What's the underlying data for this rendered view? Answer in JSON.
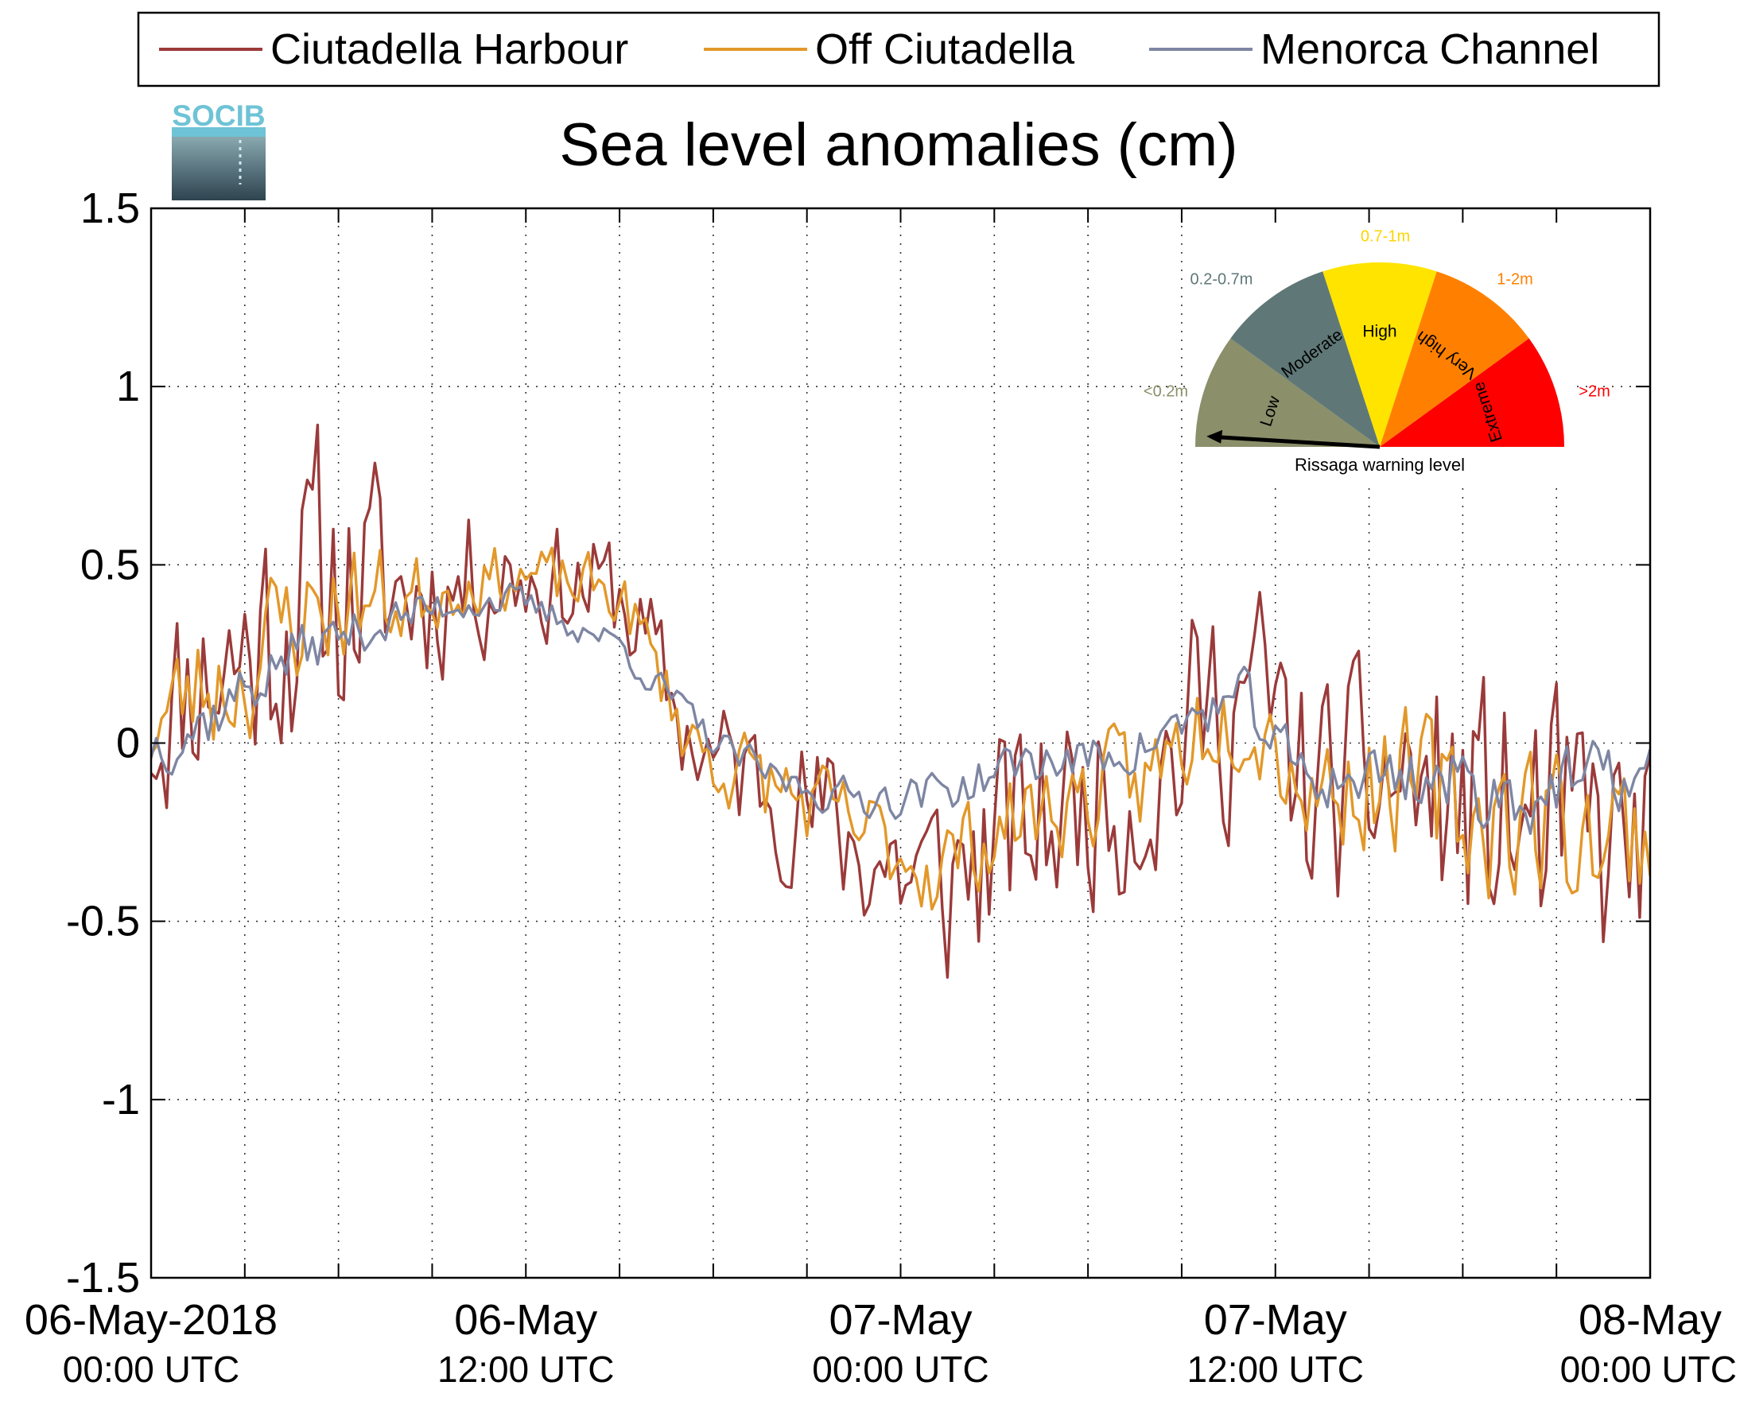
{
  "chart_data": {
    "type": "line",
    "title": "Sea level anomalies (cm)",
    "xlabel": "",
    "ylabel": "",
    "ylim": [
      -1.5,
      1.5
    ],
    "yticks": [
      1.5,
      1,
      0.5,
      0,
      -0.5,
      -1,
      -1.5
    ],
    "ytick_labels": [
      "1.5",
      "1",
      "0.5",
      "0",
      "-0.5",
      "-1",
      "-1.5"
    ],
    "xlim_hours": [
      0,
      48
    ],
    "x_grid_interval_hours": 3,
    "x_ticks": [
      {
        "hours": 0,
        "line1": "06-May-2018",
        "line2": "00:00 UTC"
      },
      {
        "hours": 12,
        "line1": "06-May",
        "line2": "12:00 UTC"
      },
      {
        "hours": 24,
        "line1": "07-May",
        "line2": "00:00 UTC"
      },
      {
        "hours": 36,
        "line1": "07-May",
        "line2": "12:00 UTC"
      },
      {
        "hours": 48,
        "line1": "08-May",
        "line2": "00:00 UTC"
      }
    ],
    "grid": true,
    "legend_position": "top",
    "sample_interval_minutes": 10,
    "series": [
      {
        "name": "Ciutadella Harbour",
        "color": "#9b3a3a",
        "trend_knots": [
          [
            0,
            0.05
          ],
          [
            1.5,
            0.2
          ],
          [
            3,
            0.25
          ],
          [
            4.5,
            0.4
          ],
          [
            6,
            0.45
          ],
          [
            8,
            0.42
          ],
          [
            10,
            0.45
          ],
          [
            11.5,
            0.48
          ],
          [
            13,
            0.45
          ],
          [
            15,
            0.42
          ],
          [
            16,
            0.25
          ],
          [
            17,
            0.05
          ],
          [
            18,
            -0.05
          ],
          [
            20,
            -0.12
          ],
          [
            22,
            -0.25
          ],
          [
            24,
            -0.35
          ],
          [
            25,
            -0.42
          ],
          [
            26,
            -0.35
          ],
          [
            28,
            -0.25
          ],
          [
            30,
            -0.15
          ],
          [
            32,
            -0.1
          ],
          [
            33,
            0.0
          ],
          [
            34,
            0.1
          ],
          [
            35,
            0.15
          ],
          [
            36,
            0.05
          ],
          [
            37,
            -0.15
          ],
          [
            38,
            -0.15
          ],
          [
            40,
            -0.1
          ],
          [
            42,
            -0.2
          ],
          [
            44,
            -0.25
          ],
          [
            46,
            -0.3
          ],
          [
            48,
            -0.3
          ]
        ],
        "noise_knots": [
          [
            0,
            0.25
          ],
          [
            2,
            0.3
          ],
          [
            3,
            0.35
          ],
          [
            6,
            0.38
          ],
          [
            8,
            0.25
          ],
          [
            12,
            0.15
          ],
          [
            15,
            0.15
          ],
          [
            17,
            0.15
          ],
          [
            20,
            0.18
          ],
          [
            24,
            0.25
          ],
          [
            26,
            0.3
          ],
          [
            30,
            0.25
          ],
          [
            34,
            0.3
          ],
          [
            36,
            0.3
          ],
          [
            40,
            0.28
          ],
          [
            42,
            0.35
          ],
          [
            46,
            0.35
          ],
          [
            48,
            0.3
          ]
        ],
        "seed": 11
      },
      {
        "name": "Off Ciutadella",
        "color": "#e2982a",
        "trend_knots": [
          [
            0,
            0.05
          ],
          [
            1.5,
            0.15
          ],
          [
            3,
            0.2
          ],
          [
            4.5,
            0.35
          ],
          [
            6,
            0.4
          ],
          [
            8,
            0.4
          ],
          [
            10,
            0.45
          ],
          [
            11.5,
            0.47
          ],
          [
            13,
            0.45
          ],
          [
            15,
            0.42
          ],
          [
            16,
            0.25
          ],
          [
            17,
            0.05
          ],
          [
            18,
            -0.05
          ],
          [
            20,
            -0.12
          ],
          [
            22,
            -0.22
          ],
          [
            24,
            -0.3
          ],
          [
            25,
            -0.35
          ],
          [
            26,
            -0.3
          ],
          [
            28,
            -0.2
          ],
          [
            30,
            -0.15
          ],
          [
            32,
            -0.1
          ],
          [
            33,
            0.0
          ],
          [
            34,
            0.1
          ],
          [
            35,
            0.12
          ],
          [
            36,
            0.02
          ],
          [
            37,
            -0.12
          ],
          [
            38,
            -0.12
          ],
          [
            40,
            -0.1
          ],
          [
            42,
            -0.2
          ],
          [
            44,
            -0.2
          ],
          [
            46,
            -0.25
          ],
          [
            48,
            -0.25
          ]
        ],
        "noise_knots": [
          [
            0,
            0.15
          ],
          [
            3,
            0.18
          ],
          [
            6,
            0.16
          ],
          [
            10,
            0.08
          ],
          [
            15,
            0.08
          ],
          [
            18,
            0.1
          ],
          [
            24,
            0.12
          ],
          [
            28,
            0.12
          ],
          [
            34,
            0.15
          ],
          [
            38,
            0.15
          ],
          [
            42,
            0.2
          ],
          [
            46,
            0.2
          ],
          [
            48,
            0.18
          ]
        ],
        "seed": 23
      },
      {
        "name": "Menorca Channel",
        "color": "#7e86a3",
        "trend_knots": [
          [
            0,
            0.0
          ],
          [
            1.5,
            0.05
          ],
          [
            3,
            0.15
          ],
          [
            4.5,
            0.25
          ],
          [
            6,
            0.3
          ],
          [
            8,
            0.35
          ],
          [
            10,
            0.4
          ],
          [
            11.5,
            0.4
          ],
          [
            13,
            0.35
          ],
          [
            15,
            0.28
          ],
          [
            16,
            0.18
          ],
          [
            17,
            0.1
          ],
          [
            18,
            0.0
          ],
          [
            20,
            -0.1
          ],
          [
            22,
            -0.15
          ],
          [
            24,
            -0.15
          ],
          [
            26,
            -0.12
          ],
          [
            28,
            -0.05
          ],
          [
            30,
            -0.05
          ],
          [
            32,
            0.0
          ],
          [
            33,
            0.05
          ],
          [
            34,
            0.1
          ],
          [
            35,
            0.12
          ],
          [
            36,
            0.0
          ],
          [
            37,
            -0.1
          ],
          [
            38,
            -0.1
          ],
          [
            40,
            -0.08
          ],
          [
            42,
            -0.12
          ],
          [
            44,
            -0.15
          ],
          [
            46,
            -0.1
          ],
          [
            48,
            -0.1
          ]
        ],
        "noise_knots": [
          [
            0,
            0.08
          ],
          [
            3,
            0.08
          ],
          [
            6,
            0.06
          ],
          [
            12,
            0.04
          ],
          [
            18,
            0.04
          ],
          [
            24,
            0.05
          ],
          [
            30,
            0.06
          ],
          [
            36,
            0.07
          ],
          [
            42,
            0.1
          ],
          [
            48,
            0.08
          ]
        ],
        "seed": 37
      }
    ]
  },
  "logo": {
    "text": "SOCIB"
  },
  "gauge": {
    "title": "Rissaga warning level",
    "segments": [
      {
        "name": "Low",
        "range": "<0.2m",
        "color": "#8b8f6a",
        "range_color": "#8b8f6a"
      },
      {
        "name": "Moderate",
        "range": "0.2-0.7m",
        "color": "#5f7877",
        "range_color": "#5f7877"
      },
      {
        "name": "High",
        "range": "0.7-1m",
        "color": "#ffe400",
        "range_color": "#ffd400"
      },
      {
        "name": "Very high",
        "range": "1-2m",
        "color": "#ff8000",
        "range_color": "#ff8000"
      },
      {
        "name": "Extreme",
        "range": ">2m",
        "color": "#ff0000",
        "range_color": "#ff0000"
      }
    ],
    "needle_value": 0.15
  }
}
